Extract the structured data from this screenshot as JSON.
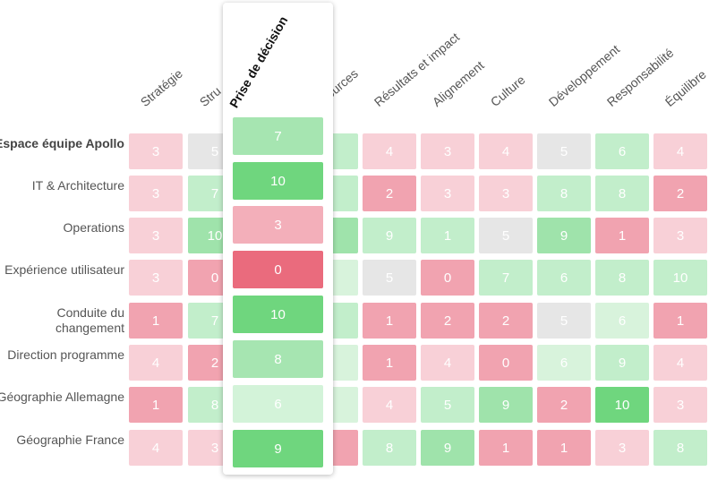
{
  "chart_data": {
    "type": "heatmap",
    "columns": [
      "Stratégie",
      "Structure",
      "Prise de décision",
      "Ressources",
      "Résultats et impact",
      "Alignement",
      "Culture",
      "Développement",
      "Responsabilité",
      "Équilibre"
    ],
    "visible_column_labels": [
      "Stratégie",
      "Stru",
      "",
      "ssources",
      "Résultats et impact",
      "Alignement",
      "Culture",
      "Développement",
      "Responsabilité",
      "Équilibre"
    ],
    "rows": [
      {
        "label": "Espace équipe Apollo",
        "bold": true
      },
      {
        "label": "IT & Architecture",
        "bold": false
      },
      {
        "label": "Operations",
        "bold": false
      },
      {
        "label": "Expérience utilisateur",
        "bold": false
      },
      {
        "label": "Conduite du changement",
        "bold": false
      },
      {
        "label": "Direction programme",
        "bold": false
      },
      {
        "label": "Géographie Allemagne",
        "bold": false
      },
      {
        "label": "Géographie France",
        "bold": false
      }
    ],
    "values": [
      [
        3,
        5,
        7,
        null,
        4,
        3,
        4,
        5,
        6,
        4
      ],
      [
        3,
        7,
        10,
        null,
        2,
        3,
        3,
        8,
        8,
        2
      ],
      [
        3,
        10,
        3,
        null,
        9,
        1,
        5,
        9,
        1,
        3
      ],
      [
        3,
        0,
        0,
        null,
        5,
        0,
        7,
        6,
        8,
        10
      ],
      [
        1,
        7,
        10,
        null,
        1,
        2,
        2,
        5,
        6,
        1
      ],
      [
        4,
        2,
        8,
        null,
        1,
        4,
        0,
        6,
        9,
        4
      ],
      [
        1,
        8,
        6,
        null,
        4,
        5,
        9,
        2,
        10,
        3
      ],
      [
        4,
        3,
        9,
        null,
        8,
        9,
        1,
        1,
        3,
        8
      ]
    ],
    "cell_fill_levels": [
      [
        3,
        5,
        7,
        7,
        3,
        3,
        3,
        5,
        7,
        3
      ],
      [
        3,
        7,
        10,
        7,
        2,
        3,
        3,
        8,
        8,
        2
      ],
      [
        3,
        9,
        3,
        9,
        7,
        7,
        5,
        9,
        1,
        3
      ],
      [
        3,
        2,
        0,
        6,
        5,
        2,
        7,
        7,
        8,
        8
      ],
      [
        1,
        7,
        10,
        7,
        1,
        2,
        2,
        5,
        6,
        1
      ],
      [
        3,
        2,
        8,
        6,
        1,
        3,
        1,
        6,
        8,
        3
      ],
      [
        1,
        8,
        6,
        6,
        3,
        7,
        9,
        2,
        10,
        3
      ],
      [
        3,
        3,
        9,
        1,
        8,
        9,
        1,
        1,
        3,
        8
      ]
    ],
    "scale": {
      "min": 0,
      "max": 10
    },
    "highlighted_column": "Prise de décision",
    "colors": {
      "0": "#ea6b7d",
      "1": "#f1a3b0",
      "2": "#f1a3b0",
      "3": "#f8d0d7",
      "4": "#f8d0d7",
      "5": "#e6e6e6",
      "6": "#d8f3dc",
      "7": "#c2eecb",
      "8": "#c2eecb",
      "9": "#9fe3ab",
      "10": "#6fd67e"
    },
    "popup_colors": {
      "0": "#ea6b7d",
      "3": "#f3afba",
      "6": "#d3f3d9",
      "7": "#a6e5b1",
      "8": "#a6e5b1",
      "9": "#6fd67e",
      "10": "#6fd67e"
    }
  }
}
